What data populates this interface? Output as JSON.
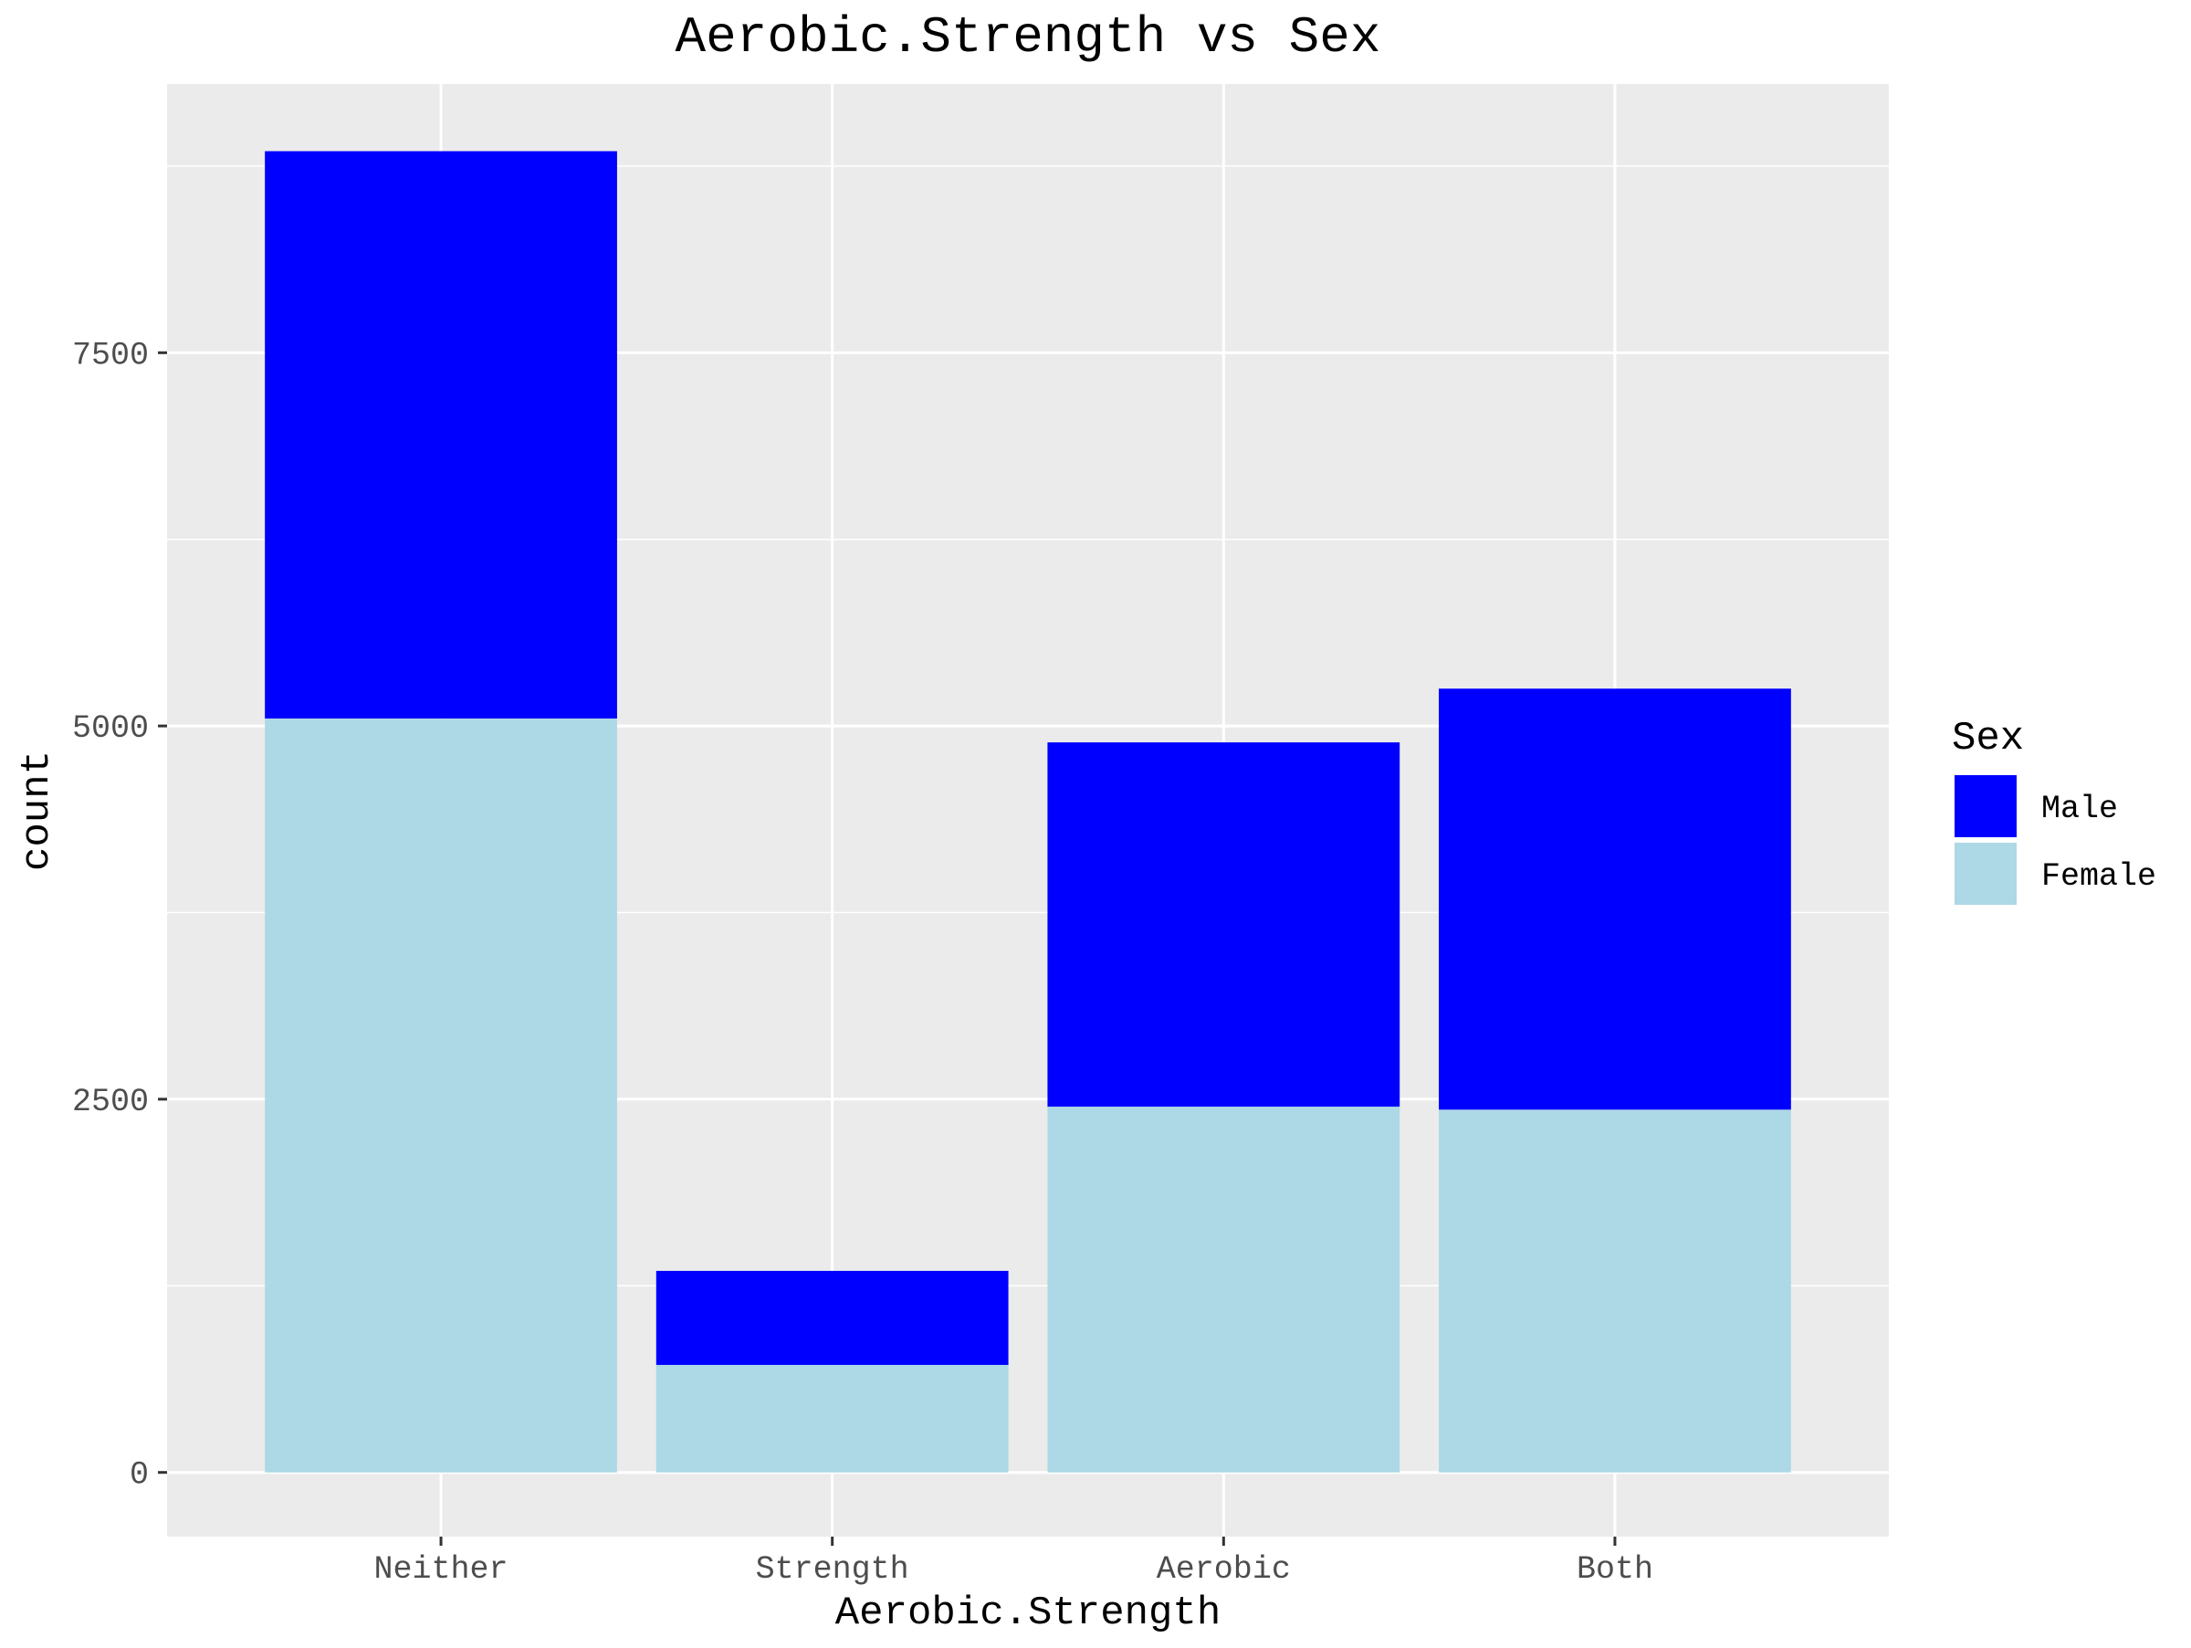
{
  "chart_data": {
    "type": "bar",
    "stacked": true,
    "title": "Aerobic.Strength vs Sex",
    "xlabel": "Aerobic.Strength",
    "ylabel": "count",
    "categories": [
      "Neither",
      "Strength",
      "Aerobic",
      "Both"
    ],
    "series": [
      {
        "name": "Male",
        "color": "#0000FF",
        "values": [
          3800,
          630,
          2440,
          2820
        ]
      },
      {
        "name": "Female",
        "color": "#ADD8E6",
        "values": [
          5050,
          720,
          2450,
          2430
        ]
      }
    ],
    "stack_order_bottom_to_top": [
      "Female",
      "Male"
    ],
    "ylim": [
      -430,
      9300
    ],
    "yticks": [
      0,
      2500,
      5000,
      7500
    ],
    "ytick_labels": [
      "0",
      "2500",
      "5000",
      "7500"
    ],
    "y_minor_ticks": [
      1250,
      3750,
      6250,
      8750
    ],
    "grid": true,
    "legend": {
      "title": "Sex",
      "position": "right",
      "entries": [
        "Male",
        "Female"
      ]
    },
    "panel_background": "#EBEBEB",
    "grid_color": "#FFFFFF"
  }
}
